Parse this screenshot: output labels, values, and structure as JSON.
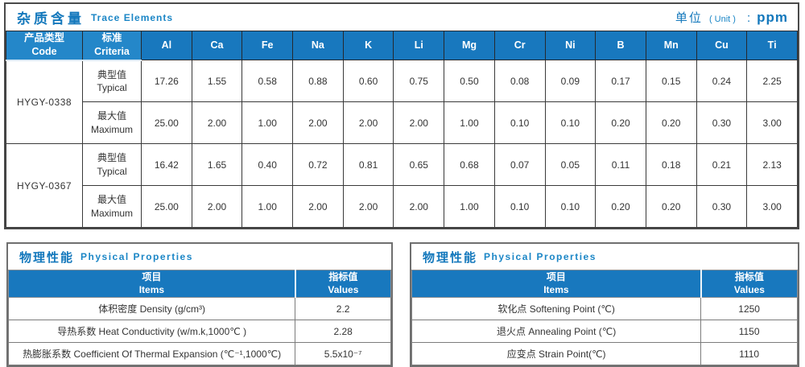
{
  "colors": {
    "accent_blue": "#1878be",
    "title_blue": "#1478bc",
    "grid_dark": "#3a3a3a",
    "grid_gray": "#7c7c7c",
    "text_dark": "#333333",
    "header_text": "#ffffff"
  },
  "trace": {
    "title_zh": "杂质含量",
    "title_en": "Trace Elements",
    "unit_zh": "单位",
    "unit_en": "( Unit )",
    "unit_sep": ":",
    "unit_value": "ppm",
    "col_code_zh": "产品类型",
    "col_code_en": "Code",
    "col_criteria_zh": "标准",
    "col_criteria_en": "Criteria",
    "elements": [
      "Al",
      "Ca",
      "Fe",
      "Na",
      "K",
      "Li",
      "Mg",
      "Cr",
      "Ni",
      "B",
      "Mn",
      "Cu",
      "Ti"
    ],
    "rows": [
      {
        "code": "HYGY-0338",
        "criteria_zh": "典型值",
        "criteria_en": "Typical",
        "values": [
          "17.26",
          "1.55",
          "0.58",
          "0.88",
          "0.60",
          "0.75",
          "0.50",
          "0.08",
          "0.09",
          "0.17",
          "0.15",
          "0.24",
          "2.25"
        ]
      },
      {
        "code": "HYGY-0338",
        "criteria_zh": "最大值",
        "criteria_en": "Maximum",
        "values": [
          "25.00",
          "2.00",
          "1.00",
          "2.00",
          "2.00",
          "2.00",
          "1.00",
          "0.10",
          "0.10",
          "0.20",
          "0.20",
          "0.30",
          "3.00"
        ]
      },
      {
        "code": "HYGY-0367",
        "criteria_zh": "典型值",
        "criteria_en": "Typical",
        "values": [
          "16.42",
          "1.65",
          "0.40",
          "0.72",
          "0.81",
          "0.65",
          "0.68",
          "0.07",
          "0.05",
          "0.11",
          "0.18",
          "0.21",
          "2.13"
        ]
      },
      {
        "code": "HYGY-0367",
        "criteria_zh": "最大值",
        "criteria_en": "Maximum",
        "values": [
          "25.00",
          "2.00",
          "1.00",
          "2.00",
          "2.00",
          "2.00",
          "1.00",
          "0.10",
          "0.10",
          "0.20",
          "0.20",
          "0.30",
          "3.00"
        ]
      }
    ]
  },
  "physical_left": {
    "title_zh": "物理性能",
    "title_en": "Physical Properties",
    "col_items_zh": "项目",
    "col_items_en": "Items",
    "col_values_zh": "指标值",
    "col_values_en": "Values",
    "rows": [
      {
        "item": "体积密度 Density (g/cm³)",
        "value": "2.2"
      },
      {
        "item": "导热系数 Heat Conductivity (w/m.k,1000℃ )",
        "value": "2.28"
      },
      {
        "item": "热膨胀系数 Coefficient Of Thermal Expansion (℃⁻¹,1000℃)",
        "value": "5.5x10⁻⁷"
      }
    ]
  },
  "physical_right": {
    "title_zh": "物理性能",
    "title_en": "Physical Properties",
    "col_items_zh": "项目",
    "col_items_en": "Items",
    "col_values_zh": "指标值",
    "col_values_en": "Values",
    "rows": [
      {
        "item": "软化点 Softening Point (℃)",
        "value": "1250"
      },
      {
        "item": "退火点 Annealing Point (℃)",
        "value": "1150"
      },
      {
        "item": "应变点 Strain Point(℃)",
        "value": "1110"
      }
    ]
  }
}
